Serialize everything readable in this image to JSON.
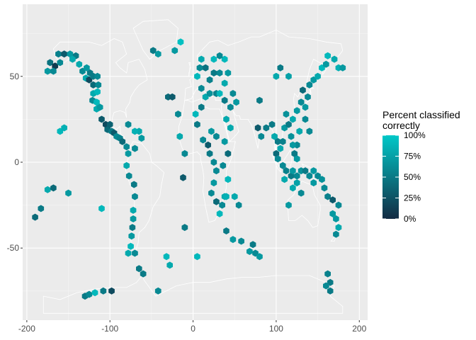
{
  "chart_data": {
    "type": "heatmap",
    "subtype": "hexbin-map",
    "title": "",
    "xlabel": "",
    "ylabel": "",
    "xlim": [
      -205,
      210
    ],
    "ylim": [
      -92,
      92
    ],
    "x_ticks": [
      -200,
      -100,
      0,
      100,
      200
    ],
    "x_tick_labels": [
      "-200",
      "-100",
      "0",
      "100",
      "200"
    ],
    "y_ticks": [
      -50,
      0,
      50
    ],
    "y_tick_labels": [
      "-50",
      "0",
      "50"
    ],
    "grid": true,
    "background": "#ebebeb",
    "basemap": "world-country-outlines",
    "legend": {
      "title_lines": [
        "Percent classified",
        "correctly"
      ],
      "position": "right",
      "min": 0,
      "max": 1,
      "breaks": [
        0,
        0.25,
        0.5,
        0.75,
        1
      ],
      "break_labels": [
        "0%",
        "25%",
        "50%",
        "75%",
        "100%"
      ],
      "color_low": "#132b43",
      "color_high": "#00c8c8"
    },
    "cells": [
      [
        -162,
        63,
        0.55
      ],
      [
        -155,
        63,
        0.3
      ],
      [
        -148,
        63,
        0.7
      ],
      [
        -141,
        62,
        0.5
      ],
      [
        -172,
        58,
        0.45
      ],
      [
        -166,
        56,
        0.1
      ],
      [
        -160,
        58,
        0.6
      ],
      [
        -145,
        60,
        0.8
      ],
      [
        -175,
        53,
        0.7
      ],
      [
        -168,
        53,
        0.6
      ],
      [
        -137,
        57,
        0.8
      ],
      [
        -133,
        53,
        0.6
      ],
      [
        -128,
        55,
        0.7
      ],
      [
        -124,
        52,
        0.5
      ],
      [
        -129,
        49,
        0.8
      ],
      [
        -125,
        48,
        0.2
      ],
      [
        -120,
        50,
        0.5
      ],
      [
        -115,
        50,
        0.6
      ],
      [
        -120,
        45,
        0.4
      ],
      [
        -114,
        45,
        0.6
      ],
      [
        -120,
        40,
        0.8
      ],
      [
        -115,
        41,
        0.9
      ],
      [
        -121,
        36,
        0.6
      ],
      [
        -116,
        35,
        0.9
      ],
      [
        -116,
        31,
        0.8
      ],
      [
        -112,
        32,
        0.7
      ],
      [
        -110,
        25,
        0.3
      ],
      [
        -105,
        22,
        0.2
      ],
      [
        -103,
        19,
        0.4
      ],
      [
        -98,
        18,
        0.5
      ],
      [
        -100,
        22,
        0.35
      ],
      [
        -95,
        17,
        0.3
      ],
      [
        -92,
        15,
        0.6
      ],
      [
        -88,
        14,
        0.55
      ],
      [
        -85,
        12,
        0.4
      ],
      [
        -80,
        9,
        0.6
      ],
      [
        -78,
        5,
        0.7
      ],
      [
        -80,
        -2,
        0.8
      ],
      [
        -77,
        -8,
        0.6
      ],
      [
        -71,
        -13,
        0.5
      ],
      [
        -70,
        -20,
        0.6
      ],
      [
        -72,
        -28,
        0.8
      ],
      [
        -72,
        -33,
        0.7
      ],
      [
        -73,
        -38,
        0.5
      ],
      [
        -74,
        -43,
        0.7
      ],
      [
        -75,
        -49,
        0.9
      ],
      [
        -70,
        -53,
        0.6
      ],
      [
        -65,
        -62,
        0.5
      ],
      [
        -190,
        -32,
        0.4
      ],
      [
        -183,
        -27,
        0.5
      ],
      [
        -175,
        -16,
        0.8
      ],
      [
        -168,
        -15,
        0.4
      ],
      [
        -150,
        -18,
        0.7
      ],
      [
        -110,
        -27,
        0.9
      ],
      [
        -160,
        18,
        0.9
      ],
      [
        -155,
        20,
        0.85
      ],
      [
        -65,
        18,
        0.8
      ],
      [
        -62,
        14,
        0.7
      ],
      [
        -70,
        18,
        0.85
      ],
      [
        -78,
        22,
        0.6
      ],
      [
        -70,
        8,
        0.6
      ],
      [
        -48,
        65,
        0.5
      ],
      [
        -42,
        63,
        0.7
      ],
      [
        -22,
        65,
        0.7
      ],
      [
        -15,
        70,
        0.95
      ],
      [
        -30,
        38,
        0.4
      ],
      [
        -25,
        38,
        0.3
      ],
      [
        -18,
        28,
        0.6
      ],
      [
        -16,
        15,
        0.8
      ],
      [
        -10,
        5,
        0.6
      ],
      [
        -12,
        -9,
        0.3
      ],
      [
        -10,
        -38,
        0.5
      ],
      [
        -32,
        -55,
        0.9
      ],
      [
        -28,
        -60,
        0.8
      ],
      [
        5,
        -55,
        0.9
      ],
      [
        -42,
        -75,
        0.6
      ],
      [
        -130,
        -78,
        0.5
      ],
      [
        -125,
        -77,
        0.6
      ],
      [
        -118,
        -76,
        0.9
      ],
      [
        -108,
        -75,
        0.5
      ],
      [
        -98,
        -75,
        0.2
      ],
      [
        -78,
        -53,
        0.8
      ],
      [
        -60,
        -65,
        0.5
      ],
      [
        5,
        50,
        0.9
      ],
      [
        10,
        43,
        0.6
      ],
      [
        15,
        38,
        0.8
      ],
      [
        10,
        32,
        0.5
      ],
      [
        3,
        28,
        0.9
      ],
      [
        5,
        22,
        0.5
      ],
      [
        12,
        13,
        0.6
      ],
      [
        18,
        10,
        0.3
      ],
      [
        22,
        18,
        0.7
      ],
      [
        28,
        15,
        0.6
      ],
      [
        20,
        5,
        0.5
      ],
      [
        25,
        0,
        0.6
      ],
      [
        28,
        -5,
        0.6
      ],
      [
        25,
        -12,
        0.7
      ],
      [
        22,
        -18,
        0.6
      ],
      [
        28,
        -23,
        0.4
      ],
      [
        32,
        -30,
        0.9
      ],
      [
        40,
        -40,
        0.5
      ],
      [
        48,
        -45,
        0.7
      ],
      [
        58,
        -46,
        0.6
      ],
      [
        72,
        -48,
        0.5
      ],
      [
        75,
        -53,
        0.6
      ],
      [
        68,
        -52,
        0.7
      ],
      [
        38,
        -20,
        0.8
      ],
      [
        35,
        -25,
        0.6
      ],
      [
        42,
        -10,
        0.9
      ],
      [
        36,
        -2,
        0.6
      ],
      [
        42,
        5,
        0.4
      ],
      [
        38,
        12,
        0.7
      ],
      [
        45,
        20,
        0.8
      ],
      [
        40,
        25,
        0.8
      ],
      [
        45,
        32,
        0.6
      ],
      [
        38,
        36,
        0.5
      ],
      [
        28,
        40,
        0.55
      ],
      [
        20,
        40,
        0.65
      ],
      [
        32,
        40,
        0.9
      ],
      [
        48,
        40,
        0.6
      ],
      [
        52,
        35,
        0.7
      ],
      [
        38,
        46,
        0.8
      ],
      [
        42,
        52,
        0.7
      ],
      [
        32,
        52,
        0.6
      ],
      [
        25,
        52,
        0.5
      ],
      [
        20,
        48,
        0.55
      ],
      [
        15,
        55,
        0.45
      ],
      [
        8,
        55,
        0.6
      ],
      [
        10,
        60,
        0.8
      ],
      [
        25,
        60,
        0.9
      ],
      [
        38,
        60,
        0.9
      ],
      [
        32,
        62,
        0.6
      ],
      [
        40,
        -20,
        0.85
      ],
      [
        50,
        -20,
        0.8
      ],
      [
        55,
        -25,
        0.6
      ],
      [
        80,
        36,
        0.5
      ],
      [
        78,
        20,
        0.3
      ],
      [
        82,
        15,
        0.6
      ],
      [
        88,
        20,
        0.5
      ],
      [
        95,
        22,
        0.5
      ],
      [
        98,
        15,
        0.8
      ],
      [
        102,
        12,
        0.5
      ],
      [
        100,
        5,
        0.4
      ],
      [
        105,
        8,
        0.8
      ],
      [
        102,
        2,
        0.6
      ],
      [
        108,
        12,
        0.55
      ],
      [
        110,
        20,
        0.7
      ],
      [
        115,
        22,
        0.5
      ],
      [
        120,
        25,
        0.8
      ],
      [
        112,
        28,
        0.65
      ],
      [
        125,
        30,
        0.7
      ],
      [
        130,
        35,
        0.6
      ],
      [
        135,
        32,
        0.7
      ],
      [
        138,
        38,
        0.6
      ],
      [
        132,
        42,
        0.4
      ],
      [
        140,
        45,
        0.6
      ],
      [
        145,
        48,
        0.7
      ],
      [
        150,
        50,
        0.8
      ],
      [
        155,
        55,
        0.9
      ],
      [
        160,
        57,
        0.7
      ],
      [
        162,
        62,
        0.9
      ],
      [
        170,
        60,
        0.8
      ],
      [
        175,
        55,
        0.85
      ],
      [
        180,
        55,
        0.7
      ],
      [
        100,
        50,
        0.8
      ],
      [
        105,
        55,
        0.5
      ],
      [
        115,
        50,
        0.75
      ],
      [
        108,
        -2,
        0.6
      ],
      [
        112,
        -5,
        0.55
      ],
      [
        118,
        -8,
        0.5
      ],
      [
        110,
        -10,
        0.8
      ],
      [
        120,
        -5,
        0.7
      ],
      [
        125,
        -8,
        0.6
      ],
      [
        130,
        -5,
        0.65
      ],
      [
        135,
        -5,
        0.5
      ],
      [
        140,
        -8,
        0.6
      ],
      [
        145,
        -5,
        0.7
      ],
      [
        150,
        -8,
        0.6
      ],
      [
        155,
        -10,
        0.65
      ],
      [
        158,
        -15,
        0.6
      ],
      [
        162,
        -20,
        0.55
      ],
      [
        168,
        -22,
        0.3
      ],
      [
        175,
        -25,
        0.6
      ],
      [
        168,
        -30,
        0.7
      ],
      [
        172,
        -33,
        0.7
      ],
      [
        175,
        -38,
        0.8
      ],
      [
        172,
        -42,
        0.6
      ],
      [
        145,
        -12,
        0.7
      ],
      [
        120,
        -15,
        0.8
      ],
      [
        115,
        -25,
        0.7
      ],
      [
        125,
        -12,
        0.75
      ],
      [
        130,
        -18,
        0.6
      ],
      [
        140,
        18,
        0.6
      ],
      [
        135,
        25,
        0.6
      ],
      [
        128,
        18,
        0.8
      ],
      [
        125,
        10,
        0.6
      ],
      [
        120,
        10,
        0.7
      ],
      [
        122,
        5,
        0.5
      ],
      [
        118,
        15,
        0.65
      ],
      [
        125,
        2,
        0.7
      ],
      [
        162,
        -65,
        0.55
      ],
      [
        165,
        -70,
        0.5
      ],
      [
        160,
        -72,
        0.6
      ],
      [
        165,
        -75,
        0.5
      ],
      [
        80,
        -55,
        0.7
      ]
    ]
  }
}
